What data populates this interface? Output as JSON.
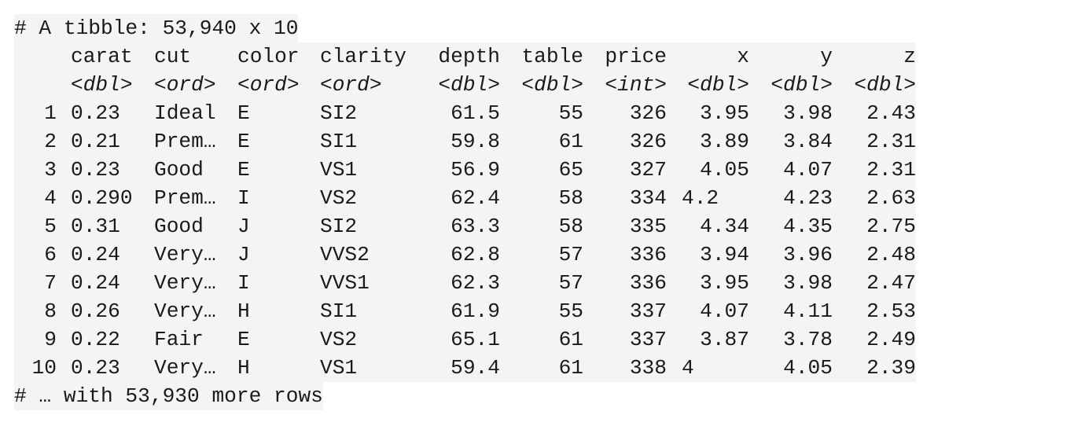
{
  "header": "# A tibble: 53,940 x 10",
  "columns": [
    {
      "name": "carat",
      "type": "<dbl>"
    },
    {
      "name": "cut",
      "type": "<ord>"
    },
    {
      "name": "color",
      "type": "<ord>"
    },
    {
      "name": "clarity",
      "type": "<ord>"
    },
    {
      "name": "depth",
      "type": "<dbl>"
    },
    {
      "name": "table",
      "type": "<dbl>"
    },
    {
      "name": "price",
      "type": "<int>"
    },
    {
      "name": "x",
      "type": "<dbl>"
    },
    {
      "name": "y",
      "type": "<dbl>"
    },
    {
      "name": "z",
      "type": "<dbl>"
    }
  ],
  "rows": [
    {
      "idx": "1",
      "carat": "0.23",
      "cut": "Ideal",
      "color": "E",
      "clarity": "SI2",
      "depth": "61.5",
      "table": "55",
      "price": "326",
      "x": "3.95",
      "y": "3.98",
      "z": "2.43"
    },
    {
      "idx": "2",
      "carat": "0.21",
      "cut": "Prem…",
      "color": "E",
      "clarity": "SI1",
      "depth": "59.8",
      "table": "61",
      "price": "326",
      "x": "3.89",
      "y": "3.84",
      "z": "2.31"
    },
    {
      "idx": "3",
      "carat": "0.23",
      "cut": "Good",
      "color": "E",
      "clarity": "VS1",
      "depth": "56.9",
      "table": "65",
      "price": "327",
      "x": "4.05",
      "y": "4.07",
      "z": "2.31"
    },
    {
      "idx": "4",
      "carat": "0.290",
      "cut": "Prem…",
      "color": "I",
      "clarity": "VS2",
      "depth": "62.4",
      "table": "58",
      "price": "334",
      "x": "4.2",
      "y": "4.23",
      "z": "2.63"
    },
    {
      "idx": "5",
      "carat": "0.31",
      "cut": "Good",
      "color": "J",
      "clarity": "SI2",
      "depth": "63.3",
      "table": "58",
      "price": "335",
      "x": "4.34",
      "y": "4.35",
      "z": "2.75"
    },
    {
      "idx": "6",
      "carat": "0.24",
      "cut": "Very…",
      "color": "J",
      "clarity": "VVS2",
      "depth": "62.8",
      "table": "57",
      "price": "336",
      "x": "3.94",
      "y": "3.96",
      "z": "2.48"
    },
    {
      "idx": "7",
      "carat": "0.24",
      "cut": "Very…",
      "color": "I",
      "clarity": "VVS1",
      "depth": "62.3",
      "table": "57",
      "price": "336",
      "x": "3.95",
      "y": "3.98",
      "z": "2.47"
    },
    {
      "idx": "8",
      "carat": "0.26",
      "cut": "Very…",
      "color": "H",
      "clarity": "SI1",
      "depth": "61.9",
      "table": "55",
      "price": "337",
      "x": "4.07",
      "y": "4.11",
      "z": "2.53"
    },
    {
      "idx": "9",
      "carat": "0.22",
      "cut": "Fair",
      "color": "E",
      "clarity": "VS2",
      "depth": "65.1",
      "table": "61",
      "price": "337",
      "x": "3.87",
      "y": "3.78",
      "z": "2.49"
    },
    {
      "idx": "10",
      "carat": "0.23",
      "cut": "Very…",
      "color": "H",
      "clarity": "VS1",
      "depth": "59.4",
      "table": "61",
      "price": "338",
      "x": "4",
      "y": "4.05",
      "z": "2.39"
    }
  ],
  "footer": "# … with 53,930 more rows"
}
